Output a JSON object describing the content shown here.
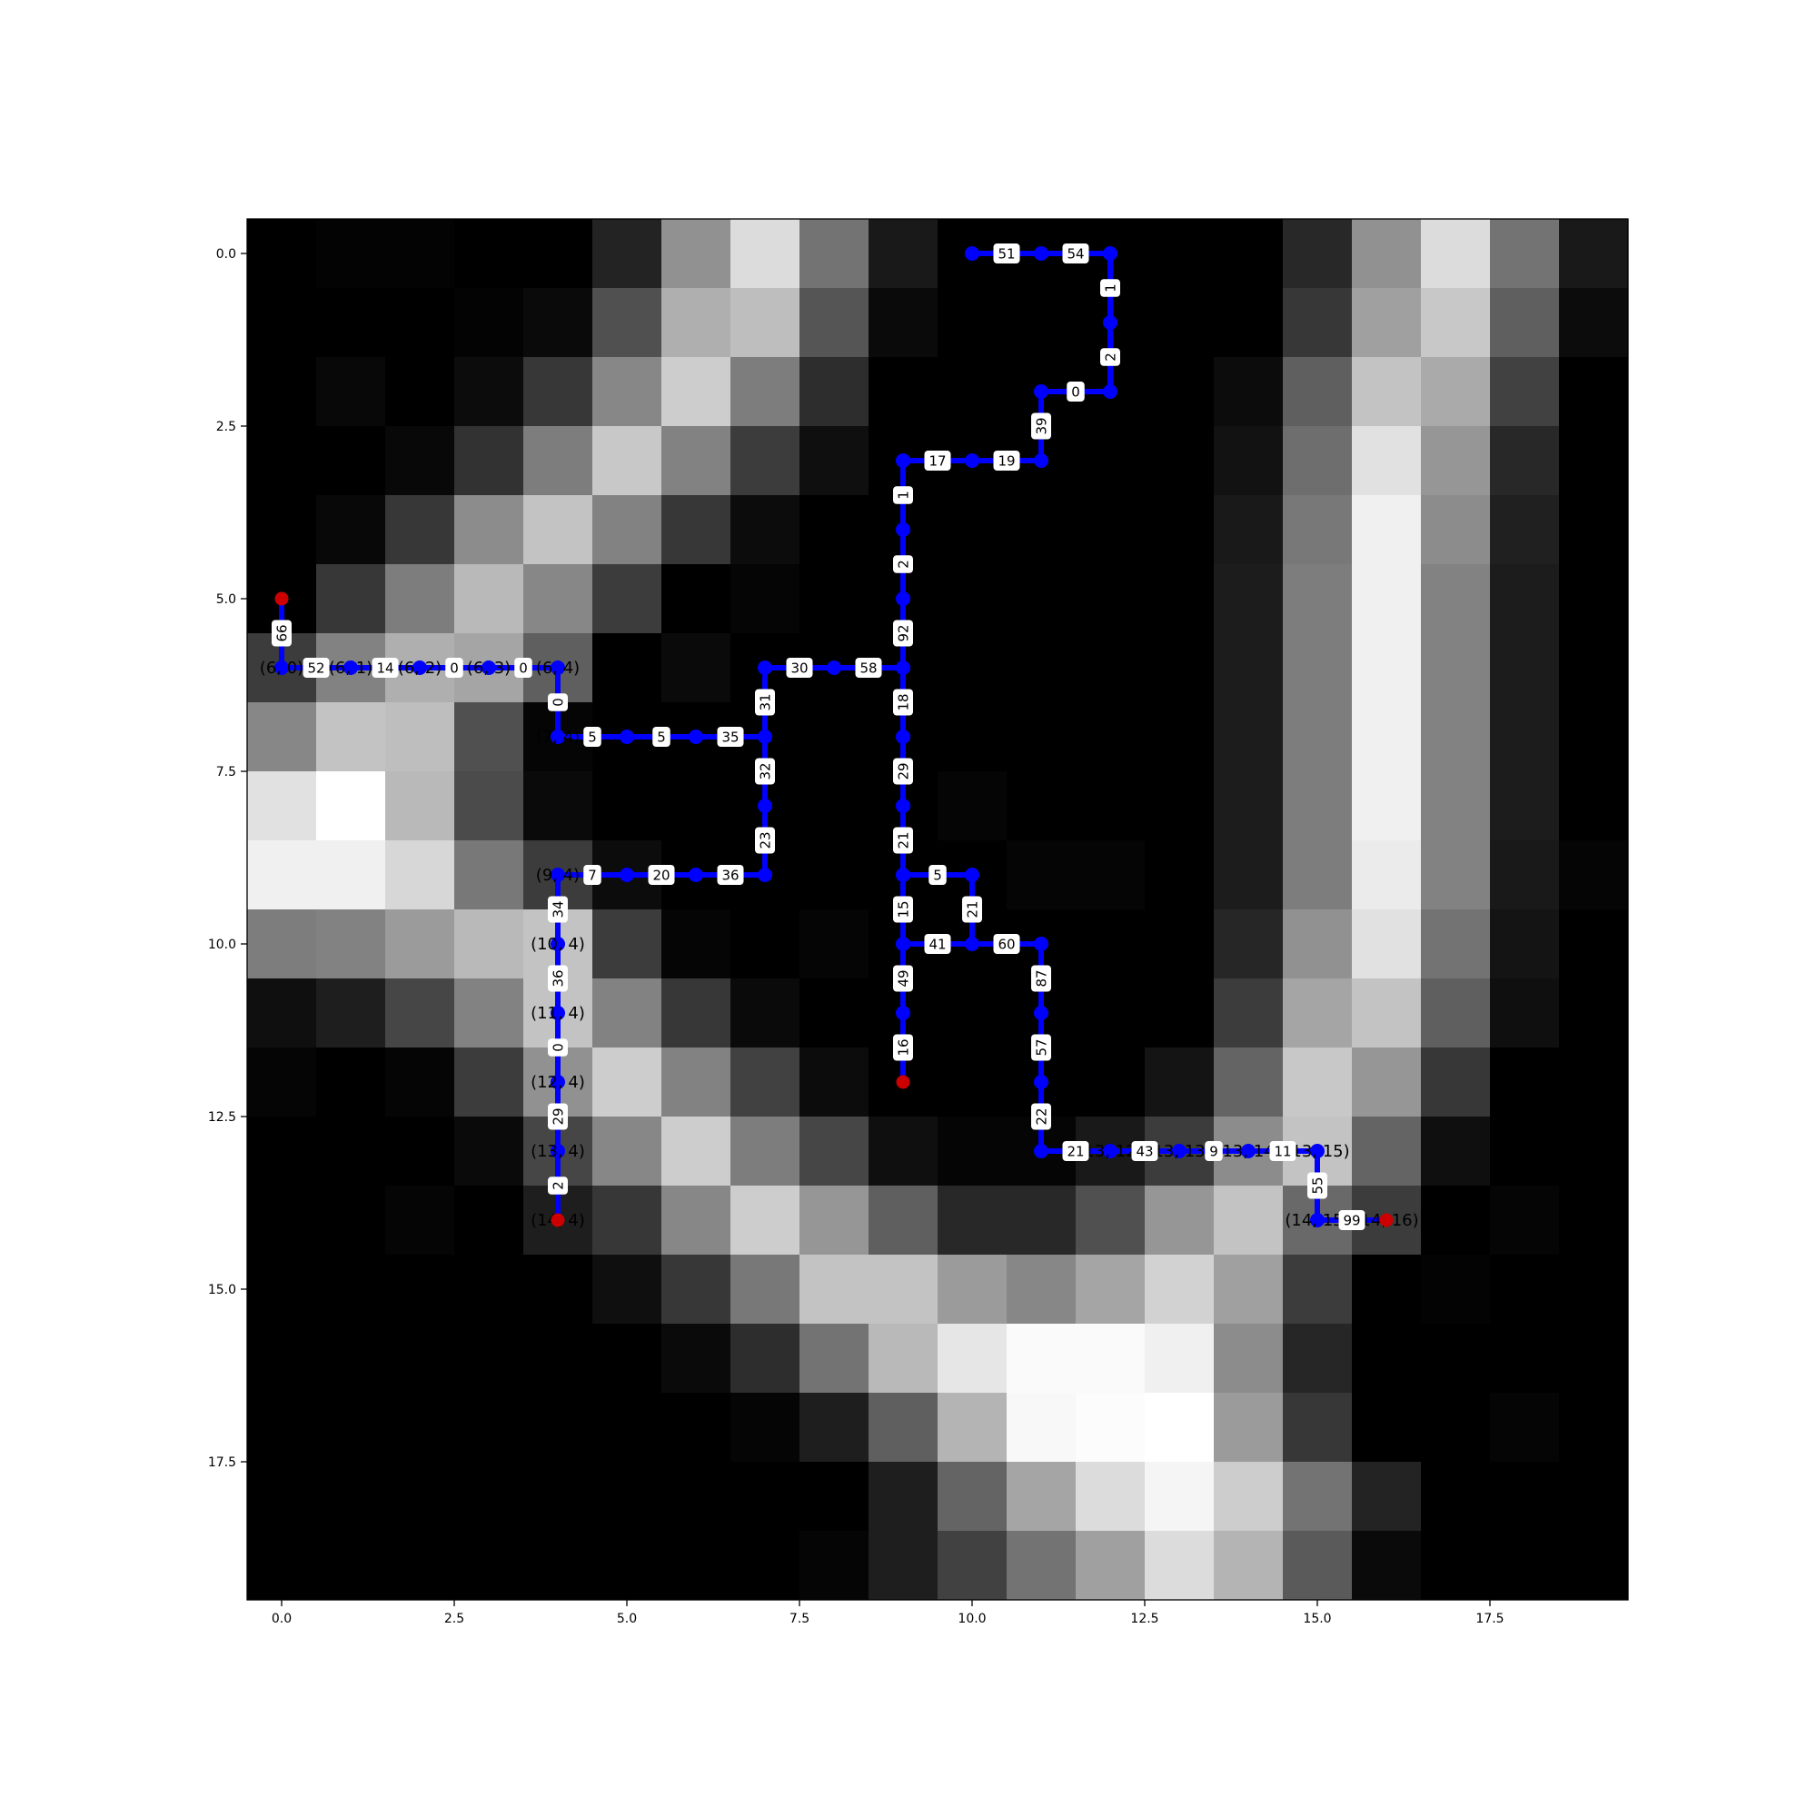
{
  "chart_data": {
    "type": "heatmap",
    "grid_size": [
      20,
      20
    ],
    "title": "",
    "xlabel": "",
    "ylabel": "",
    "xlim": [
      -0.5,
      19.5
    ],
    "ylim": [
      19.5,
      -0.5
    ],
    "x_ticks": [
      "0.0",
      "2.5",
      "5.0",
      "7.5",
      "10.0",
      "12.5",
      "15.0",
      "17.5"
    ],
    "y_ticks": [
      "0.0",
      "2.5",
      "5.0",
      "7.5",
      "10.0",
      "12.5",
      "15.0",
      "17.5"
    ],
    "tick_values": [
      0,
      2.5,
      5,
      7.5,
      10,
      12.5,
      15,
      17.5
    ],
    "colormap": "gray",
    "values": [
      [
        0,
        3,
        3,
        0,
        0,
        35,
        145,
        220,
        115,
        25,
        0,
        0,
        0,
        0,
        0,
        40,
        145,
        220,
        115,
        25
      ],
      [
        0,
        0,
        0,
        3,
        10,
        80,
        175,
        190,
        85,
        10,
        0,
        0,
        0,
        0,
        0,
        55,
        160,
        200,
        95,
        12
      ],
      [
        0,
        8,
        0,
        12,
        55,
        135,
        205,
        125,
        45,
        0,
        0,
        0,
        0,
        0,
        12,
        95,
        195,
        170,
        65,
        0
      ],
      [
        0,
        0,
        8,
        50,
        125,
        200,
        130,
        60,
        15,
        0,
        0,
        0,
        0,
        0,
        18,
        110,
        225,
        150,
        40,
        0
      ],
      [
        0,
        8,
        55,
        140,
        195,
        130,
        55,
        12,
        0,
        0,
        0,
        0,
        0,
        0,
        25,
        120,
        240,
        140,
        32,
        0
      ],
      [
        0,
        55,
        125,
        185,
        135,
        60,
        0,
        5,
        0,
        0,
        0,
        0,
        0,
        0,
        28,
        125,
        240,
        130,
        28,
        0
      ],
      [
        60,
        130,
        175,
        165,
        95,
        0,
        10,
        0,
        0,
        0,
        0,
        0,
        0,
        0,
        28,
        125,
        240,
        130,
        28,
        0
      ],
      [
        135,
        195,
        190,
        80,
        5,
        0,
        0,
        0,
        0,
        0,
        0,
        0,
        0,
        0,
        28,
        125,
        240,
        130,
        28,
        0
      ],
      [
        225,
        255,
        185,
        75,
        10,
        0,
        0,
        0,
        0,
        0,
        5,
        0,
        0,
        0,
        28,
        125,
        240,
        130,
        28,
        0
      ],
      [
        240,
        240,
        215,
        120,
        60,
        12,
        0,
        0,
        0,
        0,
        0,
        5,
        5,
        0,
        28,
        125,
        235,
        130,
        25,
        5
      ],
      [
        125,
        130,
        155,
        185,
        195,
        60,
        5,
        0,
        5,
        0,
        0,
        0,
        0,
        0,
        38,
        145,
        225,
        115,
        20,
        0
      ],
      [
        15,
        30,
        70,
        130,
        195,
        130,
        55,
        10,
        0,
        0,
        0,
        0,
        0,
        0,
        60,
        165,
        195,
        95,
        15,
        0
      ],
      [
        5,
        0,
        5,
        60,
        145,
        205,
        130,
        65,
        12,
        0,
        0,
        0,
        0,
        20,
        100,
        200,
        150,
        55,
        0,
        0
      ],
      [
        0,
        0,
        0,
        10,
        70,
        135,
        205,
        125,
        70,
        15,
        5,
        5,
        25,
        60,
        140,
        195,
        100,
        15,
        0,
        0
      ],
      [
        0,
        0,
        5,
        0,
        30,
        55,
        135,
        205,
        150,
        95,
        40,
        40,
        80,
        150,
        195,
        105,
        60,
        0,
        5,
        0
      ],
      [
        0,
        0,
        0,
        0,
        0,
        15,
        55,
        120,
        195,
        195,
        155,
        135,
        165,
        210,
        160,
        60,
        0,
        3,
        0,
        0
      ],
      [
        0,
        0,
        0,
        0,
        0,
        0,
        10,
        45,
        115,
        185,
        230,
        250,
        250,
        240,
        140,
        38,
        0,
        0,
        0,
        0
      ],
      [
        0,
        0,
        0,
        0,
        0,
        0,
        0,
        5,
        30,
        95,
        180,
        248,
        252,
        255,
        155,
        55,
        0,
        0,
        5,
        0
      ],
      [
        0,
        0,
        0,
        0,
        0,
        0,
        0,
        0,
        0,
        30,
        100,
        165,
        220,
        245,
        205,
        115,
        35,
        0,
        0,
        0
      ],
      [
        0,
        0,
        0,
        0,
        0,
        0,
        0,
        0,
        5,
        30,
        65,
        115,
        160,
        220,
        180,
        90,
        10,
        0,
        0,
        0
      ]
    ],
    "path": [
      {
        "node": [
          5,
          0
        ],
        "cost": ""
      },
      {
        "node": [
          6,
          0
        ],
        "cost": "66"
      },
      {
        "node": [
          6,
          1
        ],
        "cost": "52"
      },
      {
        "node": [
          6,
          2
        ],
        "cost": "14"
      },
      {
        "node": [
          6,
          3
        ],
        "cost": "0"
      },
      {
        "node": [
          6,
          4
        ],
        "cost": "0"
      },
      {
        "node": [
          7,
          4
        ],
        "cost": "0"
      },
      {
        "node": [
          7,
          5
        ],
        "cost": "5"
      },
      {
        "node": [
          7,
          6
        ],
        "cost": "5"
      },
      {
        "node": [
          7,
          7
        ],
        "cost": "35"
      },
      {
        "node": [
          6,
          7
        ],
        "cost": "31"
      },
      {
        "node": [
          6,
          8
        ],
        "cost": "30"
      },
      {
        "node": [
          6,
          9
        ],
        "cost": "58"
      },
      {
        "node": [
          5,
          9
        ],
        "cost": "92"
      },
      {
        "node": [
          4,
          9
        ],
        "cost": "2"
      },
      {
        "node": [
          3,
          9
        ],
        "cost": "1"
      },
      {
        "node": [
          3,
          10
        ],
        "cost": "17"
      },
      {
        "node": [
          3,
          11
        ],
        "cost": "19"
      },
      {
        "node": [
          2,
          11
        ],
        "cost": "39"
      },
      {
        "node": [
          2,
          12
        ],
        "cost": "0"
      },
      {
        "node": [
          1,
          12
        ],
        "cost": "2"
      },
      {
        "node": [
          0,
          12
        ],
        "cost": "1"
      },
      {
        "node": [
          0,
          11
        ],
        "cost": "54"
      },
      {
        "node": [
          0,
          10
        ],
        "cost": "51"
      }
    ],
    "edges": [
      {
        "from": [
          5,
          0
        ],
        "to": [
          6,
          0
        ],
        "label": "66"
      },
      {
        "from": [
          6,
          0
        ],
        "to": [
          6,
          1
        ],
        "label": "52"
      },
      {
        "from": [
          6,
          1
        ],
        "to": [
          6,
          2
        ],
        "label": "14"
      },
      {
        "from": [
          6,
          2
        ],
        "to": [
          6,
          3
        ],
        "label": "0"
      },
      {
        "from": [
          6,
          3
        ],
        "to": [
          6,
          4
        ],
        "label": "0"
      },
      {
        "from": [
          6,
          4
        ],
        "to": [
          7,
          4
        ],
        "label": "0"
      },
      {
        "from": [
          7,
          4
        ],
        "to": [
          7,
          5
        ],
        "label": "5"
      },
      {
        "from": [
          7,
          5
        ],
        "to": [
          7,
          6
        ],
        "label": "5"
      },
      {
        "from": [
          7,
          6
        ],
        "to": [
          7,
          7
        ],
        "label": "35"
      },
      {
        "from": [
          7,
          7
        ],
        "to": [
          6,
          7
        ],
        "label": "31"
      },
      {
        "from": [
          6,
          7
        ],
        "to": [
          6,
          8
        ],
        "label": "30"
      },
      {
        "from": [
          6,
          8
        ],
        "to": [
          6,
          9
        ],
        "label": "58"
      },
      {
        "from": [
          6,
          9
        ],
        "to": [
          5,
          9
        ],
        "label": "92"
      },
      {
        "from": [
          5,
          9
        ],
        "to": [
          4,
          9
        ],
        "label": "2"
      },
      {
        "from": [
          4,
          9
        ],
        "to": [
          3,
          9
        ],
        "label": "1"
      },
      {
        "from": [
          3,
          9
        ],
        "to": [
          3,
          10
        ],
        "label": "17"
      },
      {
        "from": [
          3,
          10
        ],
        "to": [
          3,
          11
        ],
        "label": "19"
      },
      {
        "from": [
          3,
          11
        ],
        "to": [
          2,
          11
        ],
        "label": "39"
      },
      {
        "from": [
          2,
          11
        ],
        "to": [
          2,
          12
        ],
        "label": "0"
      },
      {
        "from": [
          2,
          12
        ],
        "to": [
          1,
          12
        ],
        "label": "2"
      },
      {
        "from": [
          1,
          12
        ],
        "to": [
          0,
          12
        ],
        "label": "1"
      },
      {
        "from": [
          0,
          12
        ],
        "to": [
          0,
          11
        ],
        "label": "54"
      },
      {
        "from": [
          0,
          11
        ],
        "to": [
          0,
          10
        ],
        "label": "51"
      },
      {
        "from": [
          7,
          7
        ],
        "to": [
          8,
          7
        ],
        "label": "32"
      },
      {
        "from": [
          8,
          7
        ],
        "to": [
          9,
          7
        ],
        "label": "23"
      },
      {
        "from": [
          9,
          7
        ],
        "to": [
          9,
          6
        ],
        "label": "36"
      },
      {
        "from": [
          9,
          6
        ],
        "to": [
          9,
          5
        ],
        "label": "20"
      },
      {
        "from": [
          9,
          5
        ],
        "to": [
          9,
          4
        ],
        "label": "7"
      },
      {
        "from": [
          9,
          4
        ],
        "to": [
          10,
          4
        ],
        "label": "34"
      },
      {
        "from": [
          10,
          4
        ],
        "to": [
          11,
          4
        ],
        "label": "36"
      },
      {
        "from": [
          11,
          4
        ],
        "to": [
          12,
          4
        ],
        "label": "0"
      },
      {
        "from": [
          12,
          4
        ],
        "to": [
          13,
          4
        ],
        "label": "29"
      },
      {
        "from": [
          13,
          4
        ],
        "to": [
          14,
          4
        ],
        "label": "2"
      },
      {
        "from": [
          6,
          9
        ],
        "to": [
          7,
          9
        ],
        "label": "18"
      },
      {
        "from": [
          7,
          9
        ],
        "to": [
          8,
          9
        ],
        "label": "29"
      },
      {
        "from": [
          8,
          9
        ],
        "to": [
          9,
          9
        ],
        "label": "21"
      },
      {
        "from": [
          9,
          9
        ],
        "to": [
          10,
          9
        ],
        "label": "15"
      },
      {
        "from": [
          10,
          9
        ],
        "to": [
          11,
          9
        ],
        "label": "49"
      },
      {
        "from": [
          11,
          9
        ],
        "to": [
          12,
          9
        ],
        "label": "16"
      },
      {
        "from": [
          9,
          9
        ],
        "to": [
          9,
          10
        ],
        "label": "5"
      },
      {
        "from": [
          9,
          10
        ],
        "to": [
          10,
          10
        ],
        "label": "21"
      },
      {
        "from": [
          10,
          9
        ],
        "to": [
          10,
          10
        ],
        "label": "41"
      },
      {
        "from": [
          10,
          10
        ],
        "to": [
          10,
          11
        ],
        "label": "60"
      },
      {
        "from": [
          10,
          11
        ],
        "to": [
          11,
          11
        ],
        "label": "87"
      },
      {
        "from": [
          11,
          11
        ],
        "to": [
          12,
          11
        ],
        "label": "57"
      },
      {
        "from": [
          12,
          11
        ],
        "to": [
          13,
          11
        ],
        "label": "22"
      },
      {
        "from": [
          13,
          11
        ],
        "to": [
          13,
          12
        ],
        "label": "21"
      },
      {
        "from": [
          13,
          12
        ],
        "to": [
          13,
          13
        ],
        "label": "43"
      },
      {
        "from": [
          13,
          13
        ],
        "to": [
          13,
          14
        ],
        "label": "9"
      },
      {
        "from": [
          13,
          14
        ],
        "to": [
          13,
          15
        ],
        "label": "11"
      },
      {
        "from": [
          13,
          15
        ],
        "to": [
          14,
          15
        ],
        "label": "55"
      },
      {
        "from": [
          14,
          15
        ],
        "to": [
          14,
          16
        ],
        "label": "99"
      }
    ],
    "nodes": [
      [
        0,
        10
      ],
      [
        0,
        11
      ],
      [
        0,
        12
      ],
      [
        1,
        12
      ],
      [
        2,
        11
      ],
      [
        2,
        12
      ],
      [
        3,
        9
      ],
      [
        3,
        10
      ],
      [
        3,
        11
      ],
      [
        4,
        9
      ],
      [
        5,
        9
      ],
      [
        6,
        0
      ],
      [
        6,
        1
      ],
      [
        6,
        2
      ],
      [
        6,
        3
      ],
      [
        6,
        4
      ],
      [
        6,
        7
      ],
      [
        6,
        8
      ],
      [
        6,
        9
      ],
      [
        7,
        4
      ],
      [
        7,
        5
      ],
      [
        7,
        6
      ],
      [
        7,
        7
      ],
      [
        7,
        9
      ],
      [
        8,
        7
      ],
      [
        8,
        9
      ],
      [
        9,
        4
      ],
      [
        9,
        5
      ],
      [
        9,
        6
      ],
      [
        9,
        7
      ],
      [
        9,
        9
      ],
      [
        9,
        10
      ],
      [
        10,
        4
      ],
      [
        10,
        9
      ],
      [
        10,
        10
      ],
      [
        10,
        11
      ],
      [
        11,
        4
      ],
      [
        11,
        9
      ],
      [
        11,
        11
      ],
      [
        12,
        4
      ],
      [
        12,
        11
      ],
      [
        13,
        4
      ],
      [
        13,
        11
      ],
      [
        13,
        12
      ],
      [
        13,
        13
      ],
      [
        13,
        14
      ],
      [
        13,
        15
      ],
      [
        14,
        15
      ]
    ],
    "endpoints": [
      [
        5,
        0
      ],
      [
        14,
        4
      ],
      [
        12,
        9
      ],
      [
        14,
        16
      ]
    ],
    "node_labels": [
      {
        "node": [
          6,
          0
        ],
        "text": "(6, 0)"
      },
      {
        "node": [
          6,
          1
        ],
        "text": "(6, 1)"
      },
      {
        "node": [
          6,
          2
        ],
        "text": "(6, 2)"
      },
      {
        "node": [
          6,
          3
        ],
        "text": "(6, 3)"
      },
      {
        "node": [
          6,
          4
        ],
        "text": "(6, 4)"
      },
      {
        "node": [
          7,
          4
        ],
        "text": "(7, 4)"
      },
      {
        "node": [
          9,
          4
        ],
        "text": "(9, 4)"
      },
      {
        "node": [
          10,
          4
        ],
        "text": "(10, 4)"
      },
      {
        "node": [
          11,
          4
        ],
        "text": "(11, 4)"
      },
      {
        "node": [
          12,
          4
        ],
        "text": "(12, 4)"
      },
      {
        "node": [
          13,
          4
        ],
        "text": "(13, 4)"
      },
      {
        "node": [
          14,
          4
        ],
        "text": "(14, 4)"
      },
      {
        "node": [
          13,
          12
        ],
        "text": "(13, 12)"
      },
      {
        "node": [
          13,
          13
        ],
        "text": "(13, 13)"
      },
      {
        "node": [
          13,
          14
        ],
        "text": "(13, 14)"
      },
      {
        "node": [
          13,
          15
        ],
        "text": "(13, 15)"
      },
      {
        "node": [
          14,
          15
        ],
        "text": "(14, 15)"
      },
      {
        "node": [
          14,
          16
        ],
        "text": "(14, 16)"
      }
    ],
    "colors": {
      "path": "#0000ff",
      "endpoint": "#cc0000",
      "label_box": "#ffffff",
      "text": "#000000",
      "axis": "#000000"
    }
  }
}
